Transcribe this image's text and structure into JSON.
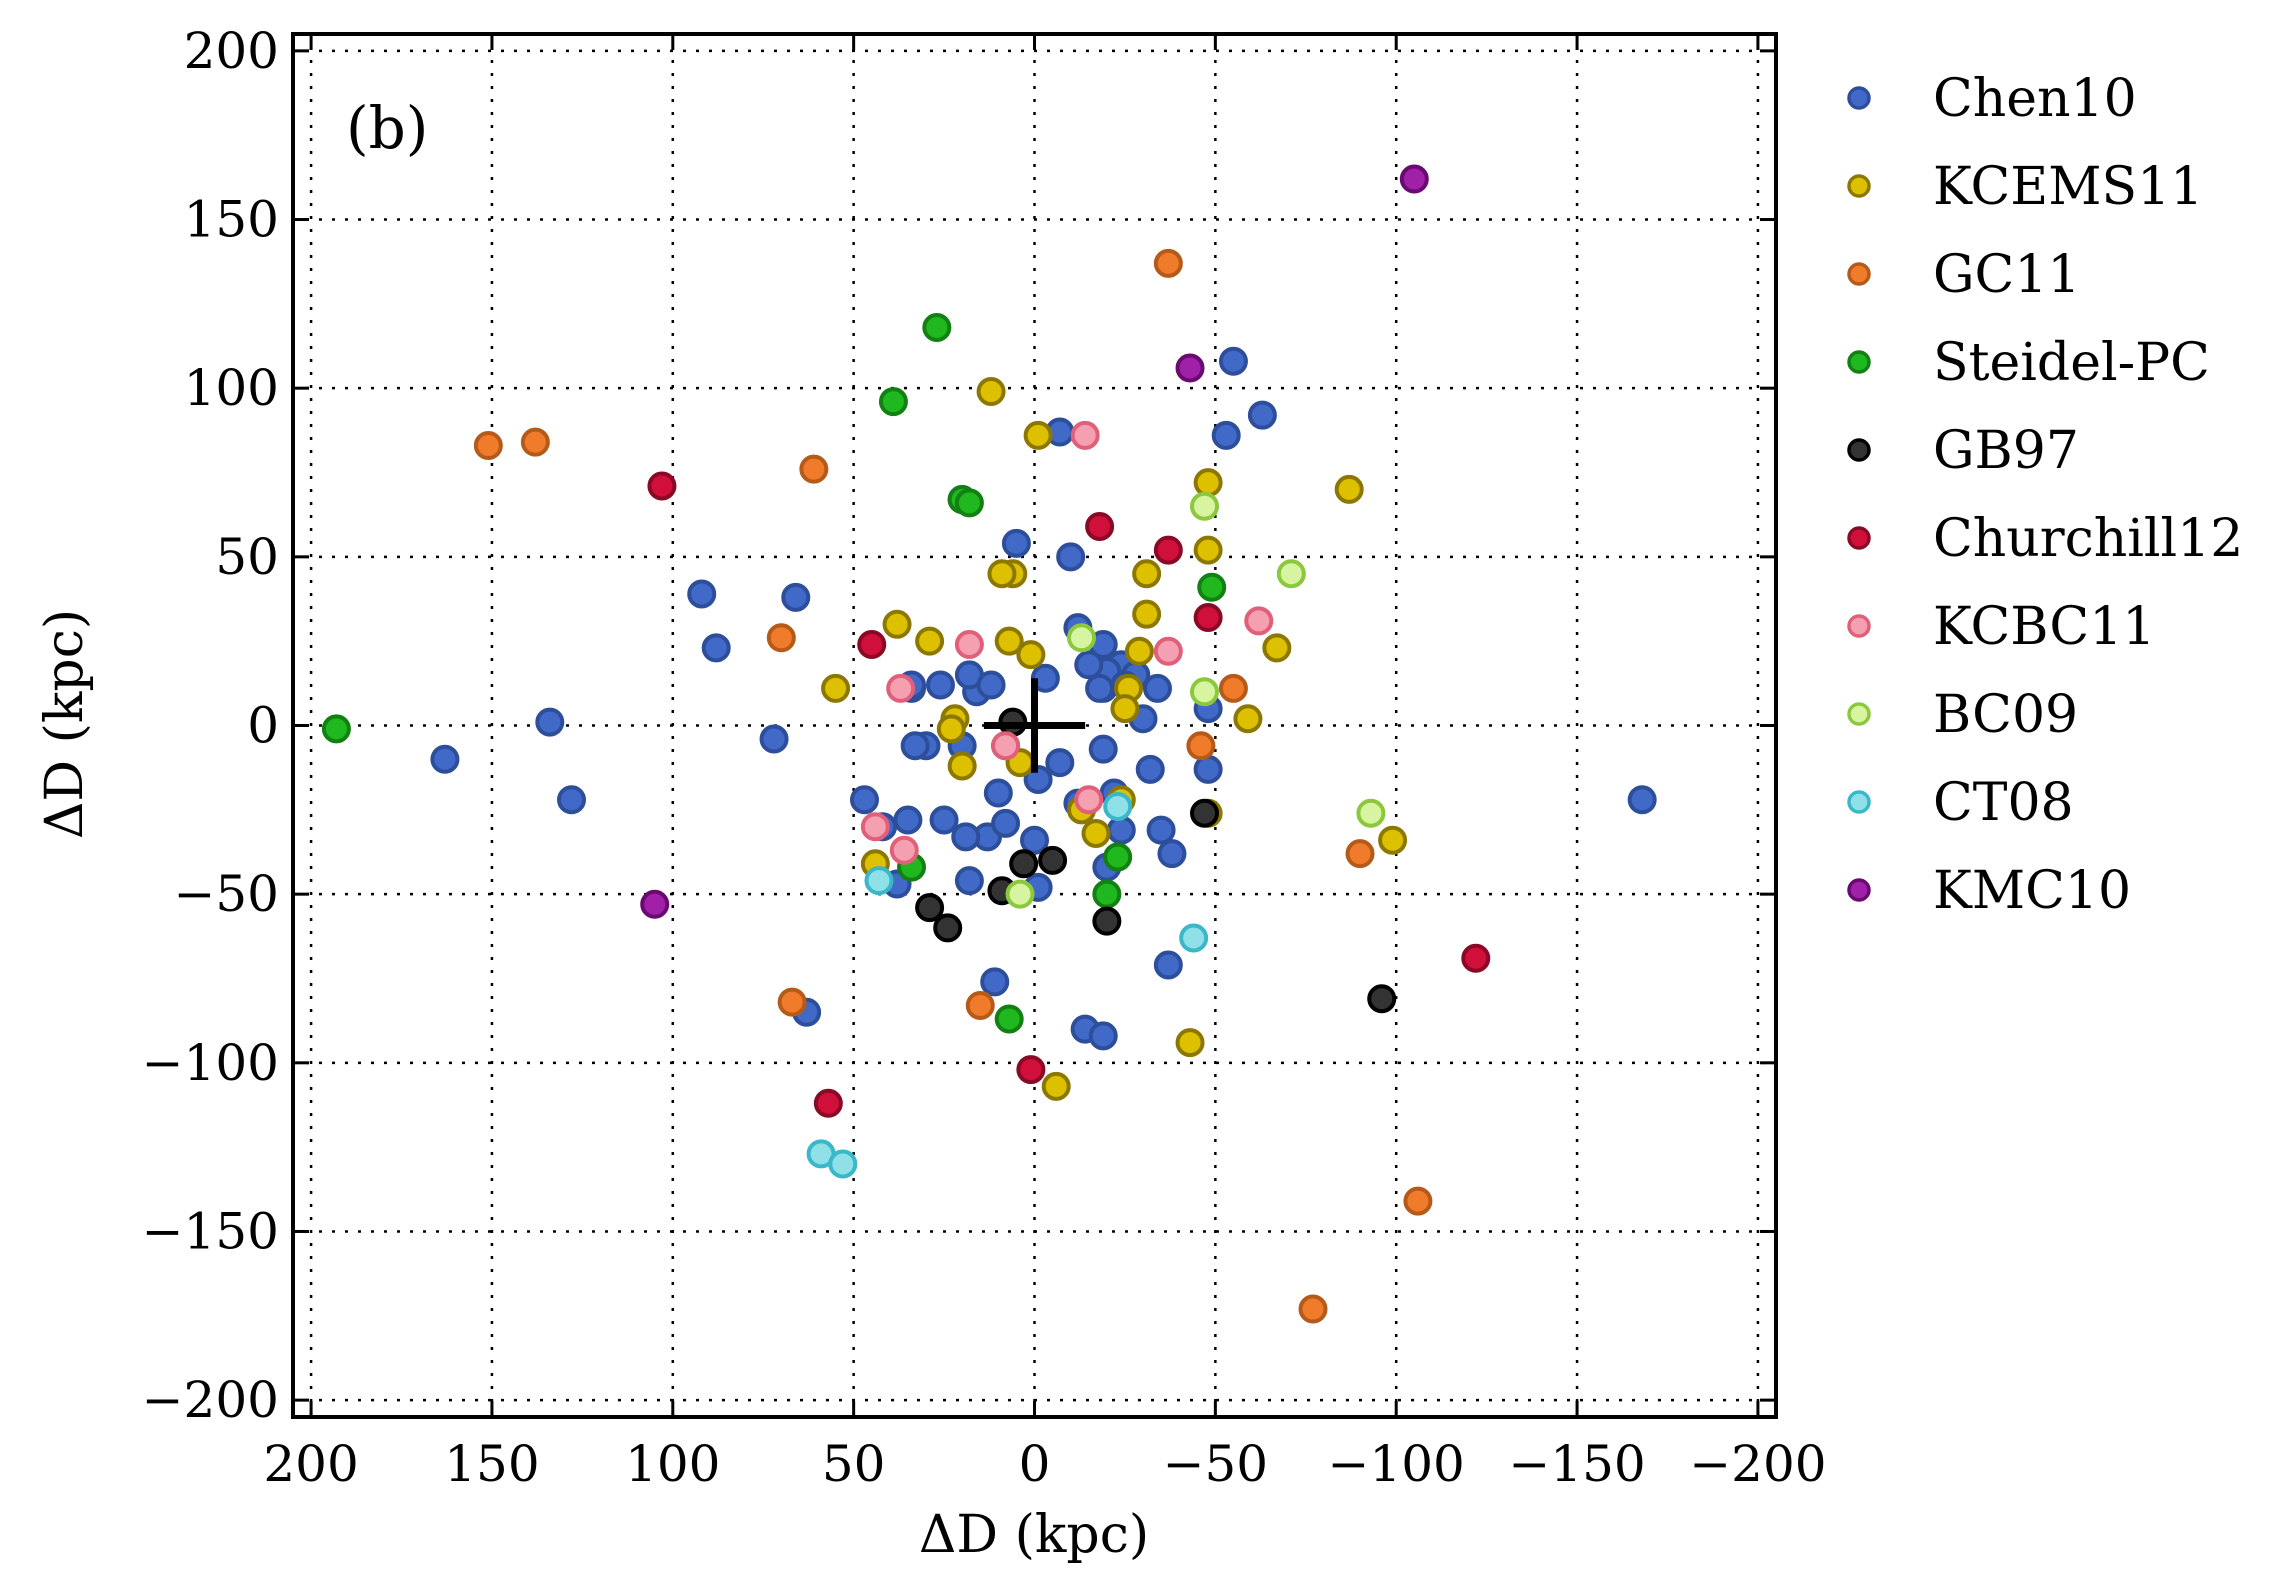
{
  "chart_data": {
    "type": "scatter",
    "panel_label": "(b)",
    "xlabel": "ΔD (kpc)",
    "ylabel": "ΔD (kpc)",
    "xlim": [
      205,
      -205
    ],
    "ylim": [
      -205,
      205
    ],
    "x_ticks": [
      200,
      150,
      100,
      50,
      0,
      -50,
      -100,
      -150,
      -200
    ],
    "y_ticks": [
      200,
      150,
      100,
      50,
      0,
      -50,
      -100,
      -150,
      -200
    ],
    "x_tick_labels": [
      "200",
      "150",
      "100",
      "50",
      "0",
      "−50",
      "−100",
      "−150",
      "−200"
    ],
    "y_tick_labels": [
      "200",
      "150",
      "100",
      "50",
      "0",
      "−50",
      "−100",
      "−150",
      "−200"
    ],
    "grid": true,
    "legend_position": "outside-right",
    "center_marker": "+",
    "series": [
      {
        "name": "Chen10",
        "fill": "#4169c8",
        "edge": "#2d4e9a",
        "points": [
          [
            -55,
            108
          ],
          [
            -63,
            92
          ],
          [
            -53,
            86
          ],
          [
            -7,
            87
          ],
          [
            -10,
            50
          ],
          [
            5,
            54
          ],
          [
            20,
            67
          ],
          [
            92,
            39
          ],
          [
            66,
            38
          ],
          [
            88,
            23
          ],
          [
            -12,
            29
          ],
          [
            -19,
            24
          ],
          [
            -24,
            18
          ],
          [
            -28,
            15
          ],
          [
            -34,
            11
          ],
          [
            -30,
            2
          ],
          [
            -19,
            11
          ],
          [
            -20,
            16
          ],
          [
            -3,
            14
          ],
          [
            -48,
            5
          ],
          [
            -48,
            -13
          ],
          [
            -32,
            -13
          ],
          [
            -19,
            -7
          ],
          [
            -25,
            12
          ],
          [
            -18,
            11
          ],
          [
            16,
            10
          ],
          [
            26,
            12
          ],
          [
            34,
            11
          ],
          [
            -15,
            18
          ],
          [
            18,
            15
          ],
          [
            12,
            12
          ],
          [
            8,
            -6
          ],
          [
            30,
            -6
          ],
          [
            35,
            -28
          ],
          [
            25,
            -28
          ],
          [
            20,
            -6
          ],
          [
            -1,
            -16
          ],
          [
            -7,
            -11
          ],
          [
            -12,
            -23
          ],
          [
            -22,
            -20
          ],
          [
            -24,
            -31
          ],
          [
            -35,
            -31
          ],
          [
            -38,
            -38
          ],
          [
            -20,
            -42
          ],
          [
            10,
            -20
          ],
          [
            13,
            -33
          ],
          [
            8,
            -29
          ],
          [
            0,
            -34
          ],
          [
            -1,
            -48
          ],
          [
            47,
            -22
          ],
          [
            42,
            -30
          ],
          [
            18,
            -46
          ],
          [
            38,
            -47
          ],
          [
            33,
            -6
          ],
          [
            19,
            -33
          ],
          [
            134,
            1
          ],
          [
            163,
            -10
          ],
          [
            128,
            -22
          ],
          [
            72,
            -4
          ],
          [
            -168,
            -22
          ],
          [
            -37,
            -71
          ],
          [
            11,
            -76
          ],
          [
            63,
            -85
          ],
          [
            -14,
            -90
          ],
          [
            -19,
            -92
          ],
          [
            34,
            12
          ]
        ]
      },
      {
        "name": "KCEMS11",
        "fill": "#ddc000",
        "edge": "#8c7800",
        "points": [
          [
            12,
            99
          ],
          [
            -1,
            86
          ],
          [
            -48,
            72
          ],
          [
            -87,
            70
          ],
          [
            -48,
            52
          ],
          [
            6,
            45
          ],
          [
            -31,
            45
          ],
          [
            9,
            45
          ],
          [
            -31,
            33
          ],
          [
            -59,
            2
          ],
          [
            -67,
            23
          ],
          [
            38,
            30
          ],
          [
            29,
            25
          ],
          [
            55,
            11
          ],
          [
            7,
            25
          ],
          [
            -29,
            22
          ],
          [
            -26,
            11
          ],
          [
            -25,
            5
          ],
          [
            1,
            21
          ],
          [
            -13,
            -25
          ],
          [
            -48,
            -26
          ],
          [
            20,
            -12
          ],
          [
            -99,
            -34
          ],
          [
            -43,
            -94
          ],
          [
            -6,
            -107
          ],
          [
            -17,
            -32
          ],
          [
            4,
            -11
          ],
          [
            22,
            2
          ],
          [
            23,
            -1
          ],
          [
            44,
            -41
          ],
          [
            -24,
            -22
          ]
        ]
      },
      {
        "name": "GC11",
        "fill": "#f07b2a",
        "edge": "#b65a1a",
        "points": [
          [
            151,
            83
          ],
          [
            138,
            84
          ],
          [
            61,
            76
          ],
          [
            70,
            26
          ],
          [
            -37,
            137
          ],
          [
            -55,
            11
          ],
          [
            -46,
            -6
          ],
          [
            -90,
            -38
          ],
          [
            -106,
            -141
          ],
          [
            -77,
            -173
          ],
          [
            67,
            -82
          ],
          [
            15,
            -83
          ]
        ]
      },
      {
        "name": "Steidel-PC",
        "fill": "#1fb81f",
        "edge": "#128012",
        "points": [
          [
            27,
            118
          ],
          [
            39,
            96
          ],
          [
            20,
            67
          ],
          [
            18,
            66
          ],
          [
            -49,
            41
          ],
          [
            193,
            -1
          ],
          [
            34,
            -42
          ],
          [
            -23,
            -39
          ],
          [
            -20,
            -50
          ],
          [
            7,
            -87
          ]
        ]
      },
      {
        "name": "GB97",
        "fill": "#333333",
        "edge": "#000000",
        "points": [
          [
            6,
            1
          ],
          [
            3,
            -41
          ],
          [
            -5,
            -40
          ],
          [
            9,
            -49
          ],
          [
            29,
            -54
          ],
          [
            24,
            -60
          ],
          [
            -47,
            -26
          ],
          [
            -20,
            -58
          ],
          [
            -96,
            -81
          ]
        ]
      },
      {
        "name": "Churchill12",
        "fill": "#d0103a",
        "edge": "#8a0a26",
        "points": [
          [
            103,
            71
          ],
          [
            -18,
            59
          ],
          [
            -37,
            52
          ],
          [
            -48,
            32
          ],
          [
            45,
            24
          ],
          [
            -122,
            -69
          ],
          [
            1,
            -102
          ],
          [
            57,
            -112
          ]
        ]
      },
      {
        "name": "KCBC11",
        "fill": "#f4a0b0",
        "edge": "#e0607a",
        "points": [
          [
            -14,
            86
          ],
          [
            -62,
            31
          ],
          [
            -37,
            22
          ],
          [
            18,
            24
          ],
          [
            37,
            11
          ],
          [
            36,
            -37
          ],
          [
            44,
            -30
          ],
          [
            8,
            -6
          ],
          [
            -15,
            -22
          ]
        ]
      },
      {
        "name": "BC09",
        "fill": "#d7f5a0",
        "edge": "#8cc83c",
        "points": [
          [
            -47,
            65
          ],
          [
            -71,
            45
          ],
          [
            -47,
            10
          ],
          [
            -13,
            26
          ],
          [
            -93,
            -26
          ],
          [
            4,
            -50
          ]
        ]
      },
      {
        "name": "CT08",
        "fill": "#90e0e8",
        "edge": "#38b8c8",
        "points": [
          [
            -23,
            -24
          ],
          [
            43,
            -46
          ],
          [
            -44,
            -63
          ],
          [
            59,
            -127
          ],
          [
            53,
            -130
          ]
        ]
      },
      {
        "name": "KMC10",
        "fill": "#a020a8",
        "edge": "#6a0a70",
        "points": [
          [
            -105,
            162
          ],
          [
            -43,
            106
          ],
          [
            105,
            -53
          ]
        ]
      }
    ]
  }
}
